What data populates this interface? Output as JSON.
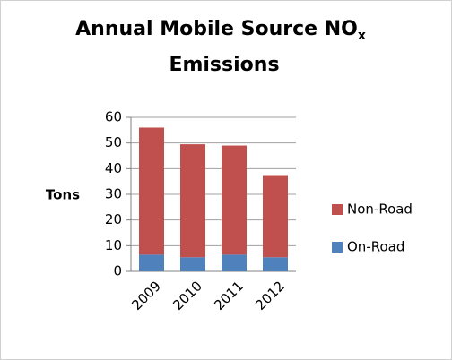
{
  "chart_data": {
    "type": "stacked_bar",
    "title": [
      "Annual Mobile Source NO",
      "x",
      "Emissions"
    ],
    "y_label": "Tons",
    "categories": [
      "2009",
      "2010",
      "2011",
      "2012"
    ],
    "series": [
      {
        "name": "On-Road",
        "color": "#4f81bd",
        "values": [
          6.5,
          5.5,
          6.5,
          5.5
        ]
      },
      {
        "name": "Non-Road",
        "color": "#c0504d",
        "values": [
          49.5,
          44,
          42.5,
          32
        ]
      }
    ],
    "ylim": [
      0,
      60
    ],
    "yticks": [
      0,
      10,
      20,
      30,
      40,
      50,
      60
    ],
    "grid": true
  }
}
